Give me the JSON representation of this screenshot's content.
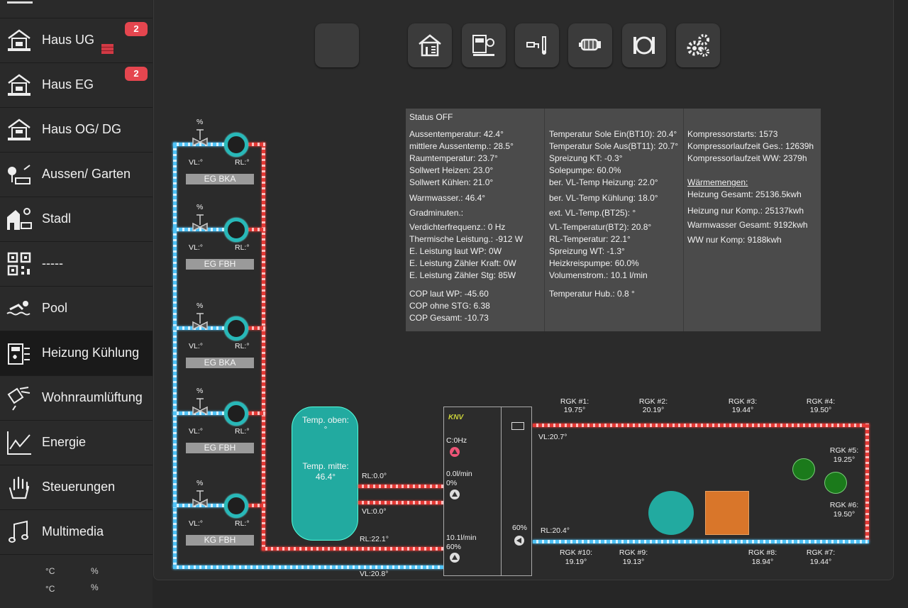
{
  "sidebar": {
    "items": [
      {
        "label": "Haus UG",
        "icon": "house-icon",
        "badge": "2"
      },
      {
        "label": "Haus EG",
        "icon": "house-icon",
        "badge": "2"
      },
      {
        "label": "Haus OG/ DG",
        "icon": "house-icon"
      },
      {
        "label": "Aussen/ Garten",
        "icon": "garden-icon"
      },
      {
        "label": "Stadl",
        "icon": "barn-icon"
      },
      {
        "label": "-----",
        "icon": "qr-code-icon"
      },
      {
        "label": "Pool",
        "icon": "swimmer-icon"
      },
      {
        "label": "Heizung Kühlung",
        "icon": "heating-icon",
        "active": true
      },
      {
        "label": "Wohnraumlüftung",
        "icon": "ventilation-icon"
      },
      {
        "label": "Energie",
        "icon": "chart-line-icon"
      },
      {
        "label": "Steuerungen",
        "icon": "hand-icon"
      },
      {
        "label": "Multimedia",
        "icon": "music-note-icon"
      }
    ],
    "footer": {
      "temp1": "°C",
      "hum1": "%",
      "temp2": "°C",
      "hum2": "%"
    }
  },
  "toolbar": {
    "buttons": [
      {
        "icon": "empty-icon"
      },
      {
        "icon": "house-thermometer-icon"
      },
      {
        "icon": "heatpump-control-icon"
      },
      {
        "icon": "tap-water-icon"
      },
      {
        "icon": "compressor-icon"
      },
      {
        "icon": "circulation-pump-icon"
      },
      {
        "icon": "gears-icon"
      }
    ]
  },
  "status": {
    "col1": {
      "title": "Status OFF",
      "lines_a": [
        "Aussentemperatur: 42.4°",
        "mittlere Aussentemp.: 28.5°",
        "Raumtemperatur: 23.7°",
        "Sollwert Heizen: 23.0°",
        "Sollwert Kühlen: 21.0°"
      ],
      "warmwasser": "Warmwasser.: 46.4°",
      "gradminuten": "Gradminuten.:",
      "lines_b": [
        "Verdichterfrequenz.: 0 Hz",
        "Thermische Leistung.: -912 W",
        "E. Leistung laut WP: 0W",
        "E. Leistung Zähler Kraft: 0W",
        "E. Leistung Zähler Stg: 85W"
      ],
      "lines_c": [
        "COP laut WP: -45.60",
        "COP ohne STG: 6.38",
        "COP Gesamt: -10.73"
      ]
    },
    "col2": {
      "lines_a": [
        "Temperatur Sole Ein(BT10): 20.4°",
        "Temperatur Sole Aus(BT11): 20.7°",
        "Spreizung KT: -0.3°",
        "Solepumpe: 60.0%",
        "ber. VL-Temp Heizung: 22.0°"
      ],
      "vl_kuehlung": "ber. VL-Temp Kühlung: 18.0°",
      "ext_vl": "ext. VL-Temp.(BT25): °",
      "lines_b": [
        "VL-Temperatur(BT2): 20.8°",
        "RL-Temperatur: 22.1°",
        "Spreizung WT: -1.3°",
        "Heizkreispumpe: 60.0%",
        "Volumenstrom.: 10.1 l/min"
      ],
      "hub": "Temperatur Hub.: 0.8 °"
    },
    "col3": {
      "lines_a": [
        "Kompressorstarts: 1573",
        "Kompressorlaufzeit Ges.: 12639h",
        "Kompressorlaufzeit WW: 2379h"
      ],
      "waermemengen": "Wärmemengen:",
      "lines_b": [
        "Heizung Gesamt: 25136.5kwh",
        "Heizung nur Komp.: 25137kwh",
        "Warmwasser Gesamt: 9192kwh",
        "WW nur Komp: 9188kwh"
      ]
    }
  },
  "circuits": [
    {
      "name": "EG BKA",
      "percent": "%",
      "vl": "VL:°",
      "rl": "RL:°"
    },
    {
      "name": "EG FBH",
      "percent": "%",
      "vl": "VL:°",
      "rl": "RL:°"
    },
    {
      "name": "EG BKA",
      "percent": "%",
      "vl": "VL:°",
      "rl": "RL:°"
    },
    {
      "name": "EG FBH",
      "percent": "%",
      "vl": "VL:°",
      "rl": "RL:°"
    },
    {
      "name": "KG FBH",
      "percent": "%",
      "vl": "VL:°",
      "rl": "RL:°"
    }
  ],
  "tank": {
    "top_label": "Temp. oben:",
    "top_value": "°",
    "mid_label": "Temp. mitte:",
    "mid_value": "46.4°"
  },
  "pipes": {
    "rl_top": "RL:0.0°",
    "vl_mid": "VL:0.0°",
    "rl_bottom": "RL:22.1°",
    "vl_bottom": "VL:20.8°"
  },
  "heatpump": {
    "brand": "KNV",
    "compressor": "C:0Hz",
    "flow1": "0.0l/min",
    "flow1_pct": "0%",
    "flow2": "10.1l/min",
    "flow2_pct": "60%",
    "sole_pct": "60%"
  },
  "ground": {
    "vl": "VL:20.7°",
    "rl": "RL:20.4°",
    "probes_top": [
      {
        "name": "RGK #1:",
        "val": "19.75°"
      },
      {
        "name": "RGK #2:",
        "val": "20.19°"
      },
      {
        "name": "RGK #3:",
        "val": "19.44°"
      },
      {
        "name": "RGK #4:",
        "val": "19.50°"
      }
    ],
    "probes_right": [
      {
        "name": "RGK #5:",
        "val": "19.25°"
      },
      {
        "name": "RGK #6:",
        "val": "19.50°"
      }
    ],
    "probes_bottom": [
      {
        "name": "RGK #10:",
        "val": "19.19°"
      },
      {
        "name": "RGK #9:",
        "val": "19.13°"
      },
      {
        "name": "RGK #8:",
        "val": "18.94°"
      },
      {
        "name": "RGK #7:",
        "val": "19.44°"
      }
    ]
  },
  "colors": {
    "accent_teal": "#22aaa0",
    "pipe_red": "#e53935",
    "pipe_blue": "#4fc3f7",
    "badge": "#e5464f",
    "orange": "#d9762a",
    "green": "#1b7a1b"
  }
}
